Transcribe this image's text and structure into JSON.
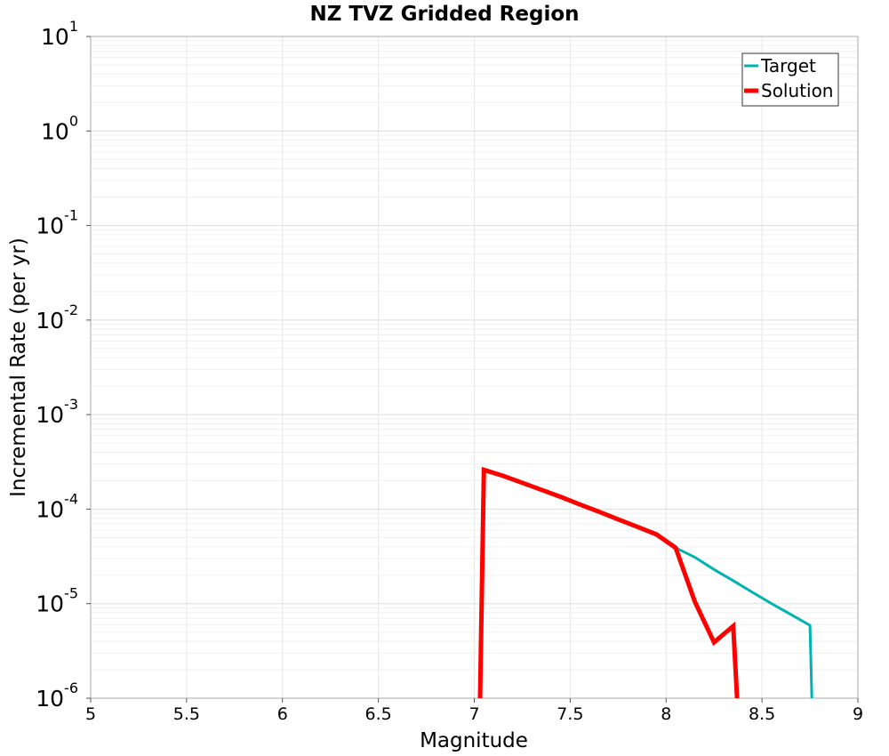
{
  "chart_data": {
    "type": "line",
    "title": "NZ TVZ Gridded Region",
    "xlabel": "Magnitude",
    "ylabel": "Incremental Rate (per yr)",
    "xlim": [
      5,
      9
    ],
    "ylim": [
      1e-06,
      10
    ],
    "yscale": "log",
    "grid": true,
    "legend_position": "top-right",
    "xticks": [
      {
        "value": 5,
        "label": "5"
      },
      {
        "value": 5.5,
        "label": "5.5"
      },
      {
        "value": 6,
        "label": "6"
      },
      {
        "value": 6.5,
        "label": "6.5"
      },
      {
        "value": 7,
        "label": "7"
      },
      {
        "value": 7.5,
        "label": "7.5"
      },
      {
        "value": 8,
        "label": "8"
      },
      {
        "value": 8.5,
        "label": "8.5"
      },
      {
        "value": 9,
        "label": "9"
      }
    ],
    "yticks": [
      {
        "exponent": -6,
        "base": "10",
        "exp": "-6"
      },
      {
        "exponent": -5,
        "base": "10",
        "exp": "-5"
      },
      {
        "exponent": -4,
        "base": "10",
        "exp": "-4"
      },
      {
        "exponent": -3,
        "base": "10",
        "exp": "-3"
      },
      {
        "exponent": -2,
        "base": "10",
        "exp": "-2"
      },
      {
        "exponent": -1,
        "base": "10",
        "exp": "-1"
      },
      {
        "exponent": 0,
        "base": "10",
        "exp": "0"
      },
      {
        "exponent": 1,
        "base": "10",
        "exp": "1"
      }
    ],
    "series": [
      {
        "name": "Target",
        "color": "#00b3b3",
        "points": [
          [
            7.03,
            1e-06
          ],
          [
            7.05,
            0.00026
          ],
          [
            7.15,
            0.000225
          ],
          [
            7.25,
            0.00019
          ],
          [
            7.35,
            0.00016
          ],
          [
            7.45,
            0.000135
          ],
          [
            7.55,
            0.000112
          ],
          [
            7.65,
            9.4e-05
          ],
          [
            7.75,
            7.8e-05
          ],
          [
            7.85,
            6.5e-05
          ],
          [
            7.95,
            5.4e-05
          ],
          [
            8.05,
            3.9e-05
          ],
          [
            8.15,
            3.1e-05
          ],
          [
            8.25,
            2.3e-05
          ],
          [
            8.35,
            1.75e-05
          ],
          [
            8.45,
            1.32e-05
          ],
          [
            8.55,
            1e-05
          ],
          [
            8.65,
            7.7e-06
          ],
          [
            8.75,
            5.9e-06
          ],
          [
            8.76,
            1e-06
          ]
        ]
      },
      {
        "name": "Solution",
        "color": "#ff0000",
        "points": [
          [
            7.03,
            1e-06
          ],
          [
            7.05,
            0.00026
          ],
          [
            7.15,
            0.000225
          ],
          [
            7.25,
            0.00019
          ],
          [
            7.35,
            0.00016
          ],
          [
            7.45,
            0.000135
          ],
          [
            7.55,
            0.000112
          ],
          [
            7.65,
            9.4e-05
          ],
          [
            7.75,
            7.8e-05
          ],
          [
            7.85,
            6.5e-05
          ],
          [
            7.95,
            5.4e-05
          ],
          [
            8.05,
            3.9e-05
          ],
          [
            8.15,
            1.05e-05
          ],
          [
            8.25,
            3.9e-06
          ],
          [
            8.35,
            5.8e-06
          ],
          [
            8.37,
            1e-06
          ]
        ]
      }
    ]
  }
}
